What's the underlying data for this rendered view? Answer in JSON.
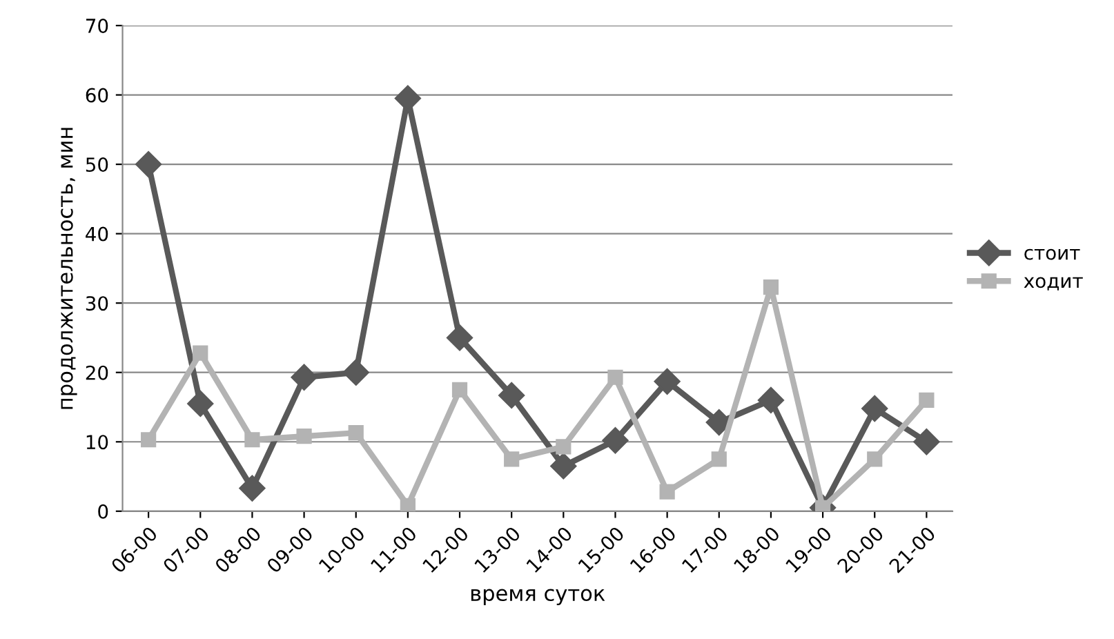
{
  "chart_data": {
    "type": "line",
    "xlabel": "время суток",
    "ylabel": "продолжительность, мин",
    "categories": [
      "06-00",
      "07-00",
      "08-00",
      "09-00",
      "10-00",
      "11-00",
      "12-00",
      "13-00",
      "14-00",
      "15-00",
      "16-00",
      "17-00",
      "18-00",
      "19-00",
      "20-00",
      "21-00"
    ],
    "series": [
      {
        "name": "стоит",
        "color": "#595959",
        "marker": "diamond",
        "values": [
          50,
          15.5,
          3.3,
          19.3,
          20,
          59.5,
          25,
          16.7,
          6.5,
          10.2,
          18.7,
          12.8,
          16,
          0.5,
          14.8,
          10
        ]
      },
      {
        "name": "ходит",
        "color": "#b3b3b3",
        "marker": "square",
        "values": [
          10.3,
          22.8,
          10.3,
          10.8,
          11.3,
          0.8,
          17.5,
          7.5,
          9.3,
          19.3,
          2.8,
          7.5,
          32.3,
          0.5,
          7.5,
          16
        ]
      }
    ],
    "ylim": [
      0,
      70
    ],
    "yticks": [
      0,
      10,
      20,
      30,
      40,
      50,
      60,
      70
    ],
    "grid": "y",
    "legend": "right",
    "line_style": "solid"
  }
}
